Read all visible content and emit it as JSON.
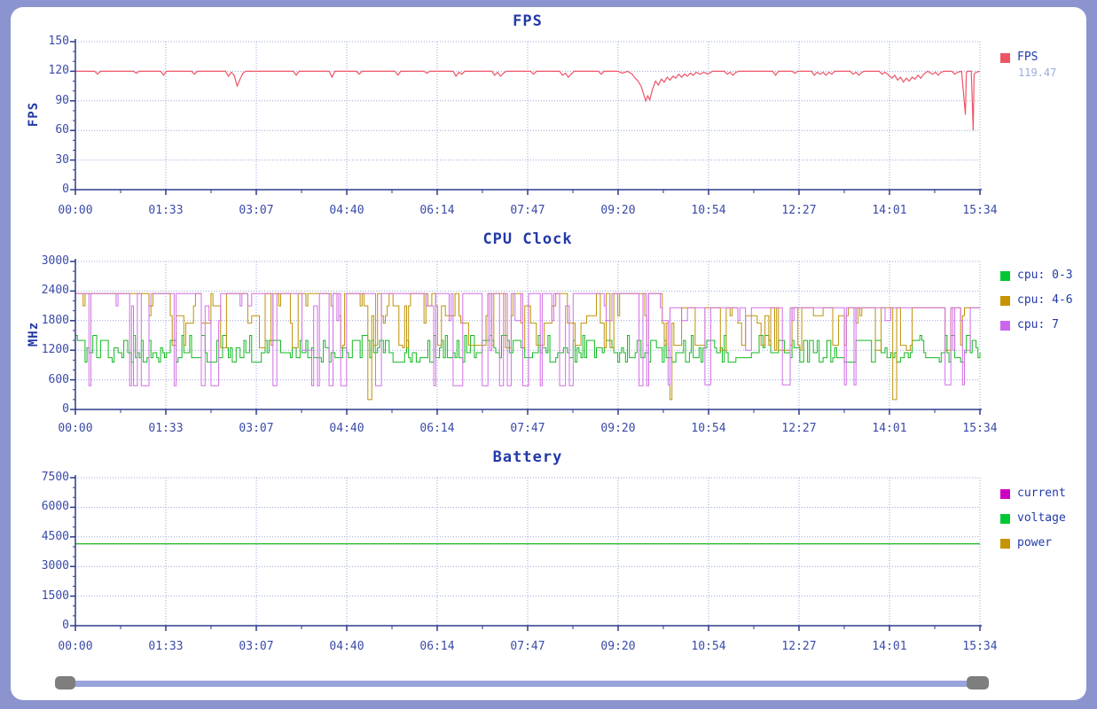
{
  "window": {
    "bg_color": "#8B94CF",
    "panel_color": "#FFFFFF"
  },
  "colors": {
    "title": "#2239A8",
    "tick_label": "#3A4AA8",
    "axis": "#2E3A8C",
    "grid": "#97A5D8",
    "legend_value": "#9AAEDC",
    "scroll_track": "#99A3DC",
    "scroll_handle": "#7E7E7E"
  },
  "x_axis": {
    "labels": [
      "00:00",
      "01:33",
      "03:07",
      "04:40",
      "06:14",
      "07:47",
      "09:20",
      "10:54",
      "12:27",
      "14:01",
      "15:34"
    ],
    "duration_s": 934
  },
  "chart_data": [
    {
      "type": "line",
      "title": "FPS",
      "ylabel": "FPS",
      "ylim": [
        0,
        150
      ],
      "yticks": [
        0,
        30,
        60,
        90,
        120,
        150
      ],
      "grid": true,
      "legend_position": "right",
      "legend": [
        {
          "label": "FPS",
          "color": "#ED5565",
          "value": "119.47"
        }
      ],
      "series": [
        {
          "name": "FPS",
          "color": "#EE5468",
          "draw": "points",
          "points": [
            [
              0,
              120
            ],
            [
              20,
              120
            ],
            [
              23,
              117
            ],
            [
              26,
              120
            ],
            [
              60,
              120
            ],
            [
              63,
              118
            ],
            [
              66,
              120
            ],
            [
              88,
              120
            ],
            [
              91,
              116
            ],
            [
              94,
              120
            ],
            [
              120,
              120
            ],
            [
              123,
              117
            ],
            [
              126,
              120
            ],
            [
              155,
              120
            ],
            [
              158,
              115
            ],
            [
              161,
              119
            ],
            [
              164,
              116
            ],
            [
              167,
              105
            ],
            [
              170,
              112
            ],
            [
              173,
              118
            ],
            [
              176,
              120
            ],
            [
              200,
              120
            ],
            [
              225,
              120
            ],
            [
              228,
              116
            ],
            [
              231,
              120
            ],
            [
              262,
              120
            ],
            [
              265,
              114
            ],
            [
              268,
              120
            ],
            [
              290,
              120
            ],
            [
              293,
              117
            ],
            [
              296,
              120
            ],
            [
              330,
              120
            ],
            [
              333,
              116
            ],
            [
              336,
              120
            ],
            [
              360,
              120
            ],
            [
              363,
              118
            ],
            [
              366,
              120
            ],
            [
              390,
              120
            ],
            [
              393,
              115
            ],
            [
              396,
              119
            ],
            [
              399,
              117
            ],
            [
              402,
              120
            ],
            [
              430,
              120
            ],
            [
              433,
              116
            ],
            [
              436,
              119
            ],
            [
              439,
              115
            ],
            [
              442,
              118
            ],
            [
              445,
              120
            ],
            [
              470,
              120
            ],
            [
              473,
              117
            ],
            [
              476,
              120
            ],
            [
              500,
              120
            ],
            [
              503,
              116
            ],
            [
              506,
              118
            ],
            [
              509,
              114
            ],
            [
              512,
              117
            ],
            [
              515,
              120
            ],
            [
              540,
              120
            ],
            [
              543,
              117
            ],
            [
              546,
              120
            ],
            [
              560,
              120
            ],
            [
              565,
              118
            ],
            [
              570,
              120
            ],
            [
              575,
              117
            ],
            [
              578,
              113
            ],
            [
              581,
              110
            ],
            [
              584,
              105
            ],
            [
              587,
              96
            ],
            [
              589,
              90
            ],
            [
              591,
              95
            ],
            [
              593,
              91
            ],
            [
              596,
              102
            ],
            [
              599,
              110
            ],
            [
              602,
              106
            ],
            [
              605,
              112
            ],
            [
              608,
              109
            ],
            [
              611,
              114
            ],
            [
              614,
              111
            ],
            [
              617,
              115
            ],
            [
              620,
              113
            ],
            [
              623,
              117
            ],
            [
              626,
              114
            ],
            [
              629,
              117
            ],
            [
              632,
              115
            ],
            [
              635,
              118
            ],
            [
              638,
              116
            ],
            [
              641,
              119
            ],
            [
              645,
              117
            ],
            [
              649,
              119
            ],
            [
              653,
              117
            ],
            [
              658,
              120
            ],
            [
              670,
              120
            ],
            [
              673,
              117
            ],
            [
              676,
              119
            ],
            [
              679,
              116
            ],
            [
              682,
              119
            ],
            [
              685,
              120
            ],
            [
              700,
              120
            ],
            [
              720,
              120
            ],
            [
              723,
              116
            ],
            [
              726,
              120
            ],
            [
              740,
              120
            ],
            [
              743,
              118
            ],
            [
              746,
              120
            ],
            [
              760,
              120
            ],
            [
              763,
              116
            ],
            [
              766,
              119
            ],
            [
              769,
              117
            ],
            [
              772,
              119
            ],
            [
              775,
              116
            ],
            [
              778,
              119
            ],
            [
              781,
              117
            ],
            [
              784,
              120
            ],
            [
              800,
              120
            ],
            [
              803,
              117
            ],
            [
              806,
              119
            ],
            [
              809,
              116
            ],
            [
              812,
              119
            ],
            [
              815,
              120
            ],
            [
              830,
              120
            ],
            [
              833,
              117
            ],
            [
              836,
              119
            ],
            [
              840,
              116
            ],
            [
              843,
              113
            ],
            [
              846,
              116
            ],
            [
              849,
              111
            ],
            [
              852,
              114
            ],
            [
              855,
              109
            ],
            [
              858,
              113
            ],
            [
              861,
              110
            ],
            [
              864,
              114
            ],
            [
              867,
              112
            ],
            [
              870,
              116
            ],
            [
              873,
              113
            ],
            [
              876,
              117
            ],
            [
              880,
              120
            ],
            [
              885,
              117
            ],
            [
              888,
              119
            ],
            [
              891,
              116
            ],
            [
              894,
              119
            ],
            [
              897,
              120
            ],
            [
              905,
              120
            ],
            [
              908,
              117
            ],
            [
              911,
              119
            ],
            [
              915,
              120
            ],
            [
              919,
              76
            ],
            [
              920,
              119
            ],
            [
              921,
              120
            ],
            [
              925,
              120
            ],
            [
              927,
              60
            ],
            [
              928,
              117
            ],
            [
              930,
              119
            ],
            [
              934,
              120
            ]
          ]
        }
      ]
    },
    {
      "type": "line",
      "title": "CPU Clock",
      "ylabel": "MHz",
      "ylim": [
        0,
        3000
      ],
      "yticks": [
        0,
        600,
        1200,
        1800,
        2400,
        3000
      ],
      "grid": true,
      "legend_position": "right",
      "legend": [
        {
          "label": "cpu: 0-3",
          "color": "#00C832"
        },
        {
          "label": "cpu: 4-6",
          "color": "#C89300"
        },
        {
          "label": "cpu: 7",
          "color": "#CC66EE"
        }
      ],
      "series": [
        {
          "name": "cpu: 0-3",
          "color": "#14B922",
          "draw": "steps",
          "seed": 11,
          "steps": 467,
          "phases": [
            {
              "until": 1.0,
              "levels": [
                [
                  1500,
                  1
                ],
                [
                  1400,
                  2
                ],
                [
                  1250,
                  2
                ],
                [
                  1150,
                  3
                ],
                [
                  1050,
                  3
                ],
                [
                  960,
                  2
                ]
              ],
              "hold_top": 0.3,
              "hold": 0.3
            }
          ]
        },
        {
          "name": "cpu: 4-6",
          "color": "#BE9208",
          "draw": "steps",
          "seed": 77,
          "steps": 467,
          "phases": [
            {
              "until": 0.645,
              "levels": [
                [
                  2350,
                  8
                ],
                [
                  2100,
                  2
                ],
                [
                  1900,
                  2
                ],
                [
                  1750,
                  2
                ],
                [
                  1300,
                  3
                ],
                [
                  1250,
                  2
                ],
                [
                  200,
                  0.35
                ]
              ],
              "hold_top": 0.6,
              "hold": 0.45
            },
            {
              "until": 1.0,
              "levels": [
                [
                  2060,
                  8
                ],
                [
                  1900,
                  2
                ],
                [
                  1750,
                  2
                ],
                [
                  1300,
                  3
                ],
                [
                  1200,
                  2
                ],
                [
                  200,
                  0.4
                ]
              ],
              "hold_top": 0.6,
              "hold": 0.45
            }
          ]
        },
        {
          "name": "cpu: 7",
          "color": "#D26FE6",
          "draw": "steps",
          "seed": 5,
          "steps": 467,
          "phases": [
            {
              "until": 0.645,
              "levels": [
                [
                  2350,
                  12
                ],
                [
                  2100,
                  2
                ],
                [
                  1800,
                  1
                ],
                [
                  1200,
                  1
                ],
                [
                  480,
                  5
                ]
              ],
              "hold_top": 0.72,
              "hold": 0.4
            },
            {
              "until": 1.0,
              "levels": [
                [
                  2060,
                  14
                ],
                [
                  1800,
                  2
                ],
                [
                  1200,
                  2
                ],
                [
                  500,
                  4
                ]
              ],
              "hold_top": 0.8,
              "hold": 0.4
            }
          ]
        }
      ]
    },
    {
      "type": "line",
      "title": "Battery",
      "ylabel": "",
      "ylim": [
        0,
        7500
      ],
      "yticks": [
        0,
        1500,
        3000,
        4500,
        6000,
        7500
      ],
      "grid": true,
      "legend_position": "right",
      "legend": [
        {
          "label": "current",
          "color": "#CC00C0"
        },
        {
          "label": "voltage",
          "color": "#00C832"
        },
        {
          "label": "power",
          "color": "#C89300"
        }
      ],
      "series": [
        {
          "name": "current",
          "color": "#CC00C0",
          "draw": "constant",
          "value": null
        },
        {
          "name": "voltage",
          "color": "#14B822",
          "draw": "constant",
          "value": 4150
        },
        {
          "name": "power",
          "color": "#C89300",
          "draw": "constant",
          "value": null
        }
      ]
    }
  ],
  "scrollbar": {
    "range_start": "00:00",
    "range_end": "15:34"
  }
}
